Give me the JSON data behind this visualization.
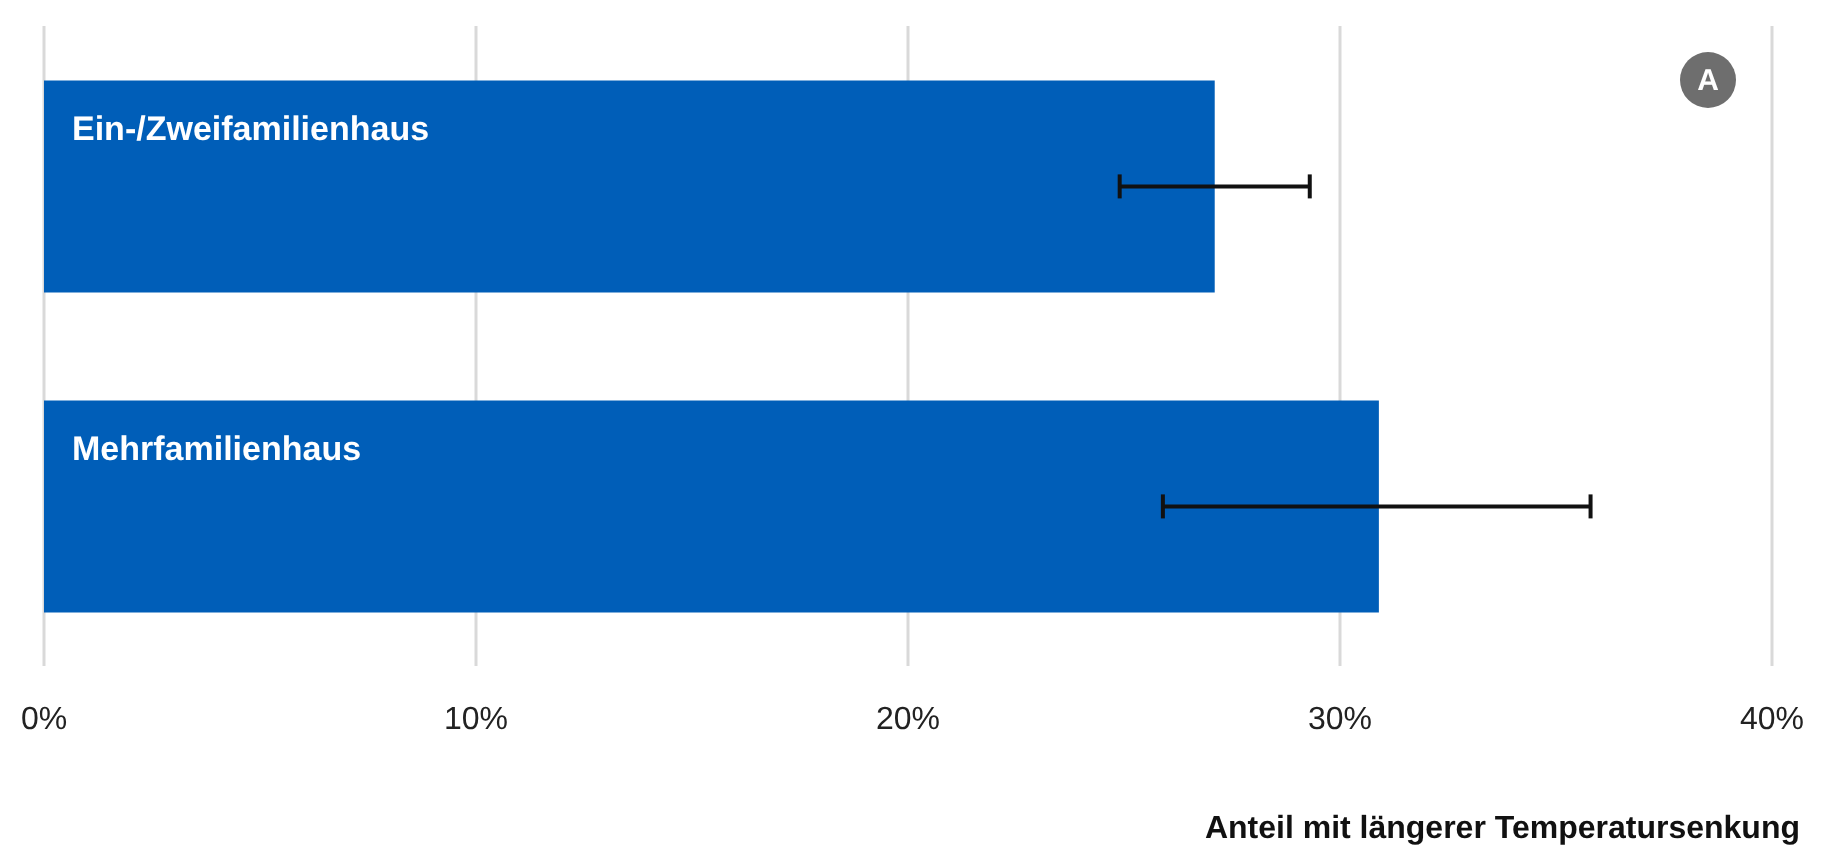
{
  "chart_data": {
    "type": "bar",
    "orientation": "horizontal",
    "categories": [
      "Ein-/Zweifamilienhaus",
      "Mehrfamilienhaus"
    ],
    "values": [
      27.1,
      30.9
    ],
    "errors": [
      [
        24.9,
        29.3
      ],
      [
        25.9,
        35.8
      ]
    ],
    "color": "#005eb8",
    "xlim": [
      0,
      40
    ],
    "xticks": [
      {
        "value": 0,
        "label": "0%"
      },
      {
        "value": 10,
        "label": "10%"
      },
      {
        "value": 20,
        "label": "20%"
      },
      {
        "value": 30,
        "label": "30%"
      },
      {
        "value": 40,
        "label": "40%"
      }
    ],
    "xlabel": "Anteil mit längerer Temperatursenkung",
    "annotations": [
      "A"
    ],
    "grid": "x"
  }
}
